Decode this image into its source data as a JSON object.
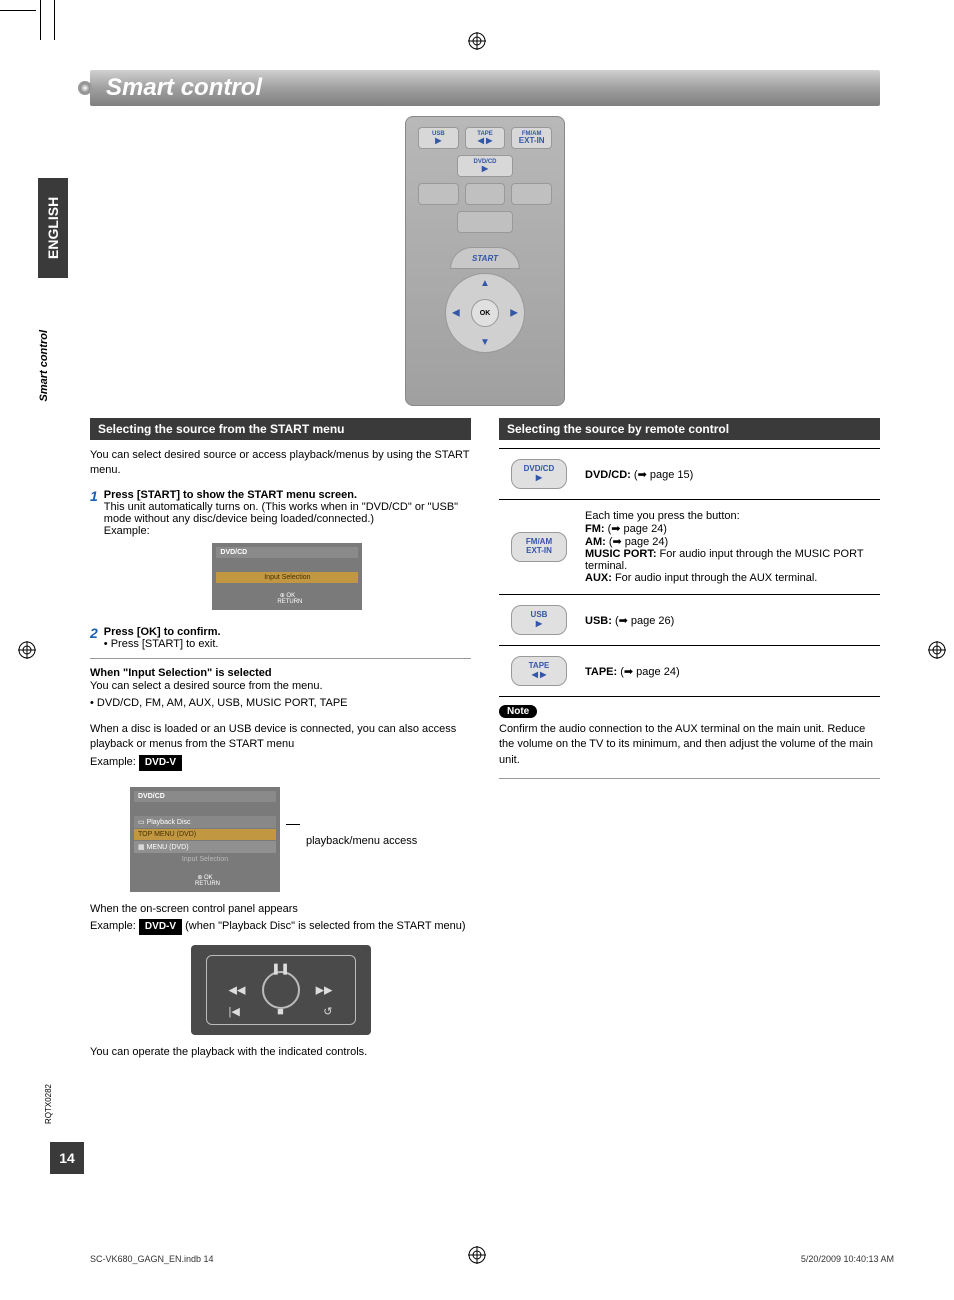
{
  "pageTitle": "Smart control",
  "sideTab": "ENGLISH",
  "sideLabel": "Smart control",
  "remote": {
    "row1": [
      "USB",
      "TAPE",
      "FM/AM"
    ],
    "row1sub": [
      "▶",
      "◀ ▶",
      "EXT-IN"
    ],
    "dvdcd": "DVD/CD",
    "start": "START",
    "ok": "OK"
  },
  "left": {
    "header": "Selecting the source from the START menu",
    "intro": "You can select desired source or access playback/menus by using the START menu.",
    "step1Title": "Press [START] to show the START menu screen.",
    "step1Body1": "This unit automatically turns on. (This works when in \"DVD/CD\" or \"USB\" mode without any disc/device being loaded/connected.)",
    "step1Body2": "Example:",
    "menu1": {
      "hdr": "DVD/CD",
      "sel": "Input Selection",
      "ok": "OK",
      "ret": "RETURN"
    },
    "step2Title": "Press [OK] to confirm.",
    "step2Bullet": "• Press [START] to exit.",
    "whenTitle": "When \"Input Selection\" is selected",
    "whenBody1": "You can select a desired source from the menu.",
    "whenBody2": "• DVD/CD, FM, AM, AUX, USB, MUSIC PORT, TAPE",
    "whenBody3": "When a disc is loaded or an USB device is connected, you can also access playback or menus from the START menu",
    "examplePre": "Example: ",
    "dvdvBadge": "DVD-V",
    "menu2": {
      "hdr": "DVD/CD",
      "pb": "Playback Disc",
      "top": "TOP MENU (DVD)",
      "menu": "MENU (DVD)",
      "inp": "Input Selection",
      "ok": "OK",
      "ret": "RETURN"
    },
    "relation": "playback/menu access",
    "panel1": "When the on-screen control panel appears",
    "panel2": " (when \"Playback Disc\" is selected from the START menu)",
    "bottom": "You can operate the playback with the indicated controls."
  },
  "right": {
    "header": "Selecting the source by remote control",
    "rows": [
      {
        "btn": "DVD/CD",
        "btnSub": "▶",
        "text": "<b>DVD/CD:</b> (➡ page 15)"
      },
      {
        "btn": "FM/AM",
        "btnSub": "EXT-IN",
        "text": "Each time you press the button:<br><b>FM:</b> (➡ page 24)<br><b>AM:</b> (➡ page 24)<br><b>MUSIC PORT:</b>  For audio input through the MUSIC PORT terminal.<br><b>AUX:</b> For audio input through the AUX terminal."
      },
      {
        "btn": "USB",
        "btnSub": "▶",
        "text": "<b>USB:</b> (➡ page 26)"
      },
      {
        "btn": "TAPE",
        "btnSub": "◀ ▶",
        "text": "<b>TAPE:</b> (➡ page 24)"
      }
    ],
    "note": "Note",
    "noteBody": "Confirm the audio connection to the AUX terminal on the main unit. Reduce the volume on the TV to its minimum, and then adjust the volume of the main unit."
  },
  "docCode": "RQTX0282",
  "pageNum": "14",
  "footerLeft": "SC-VK680_GAGN_EN.indb   14",
  "footerRight": "5/20/2009   10:40:13 AM"
}
